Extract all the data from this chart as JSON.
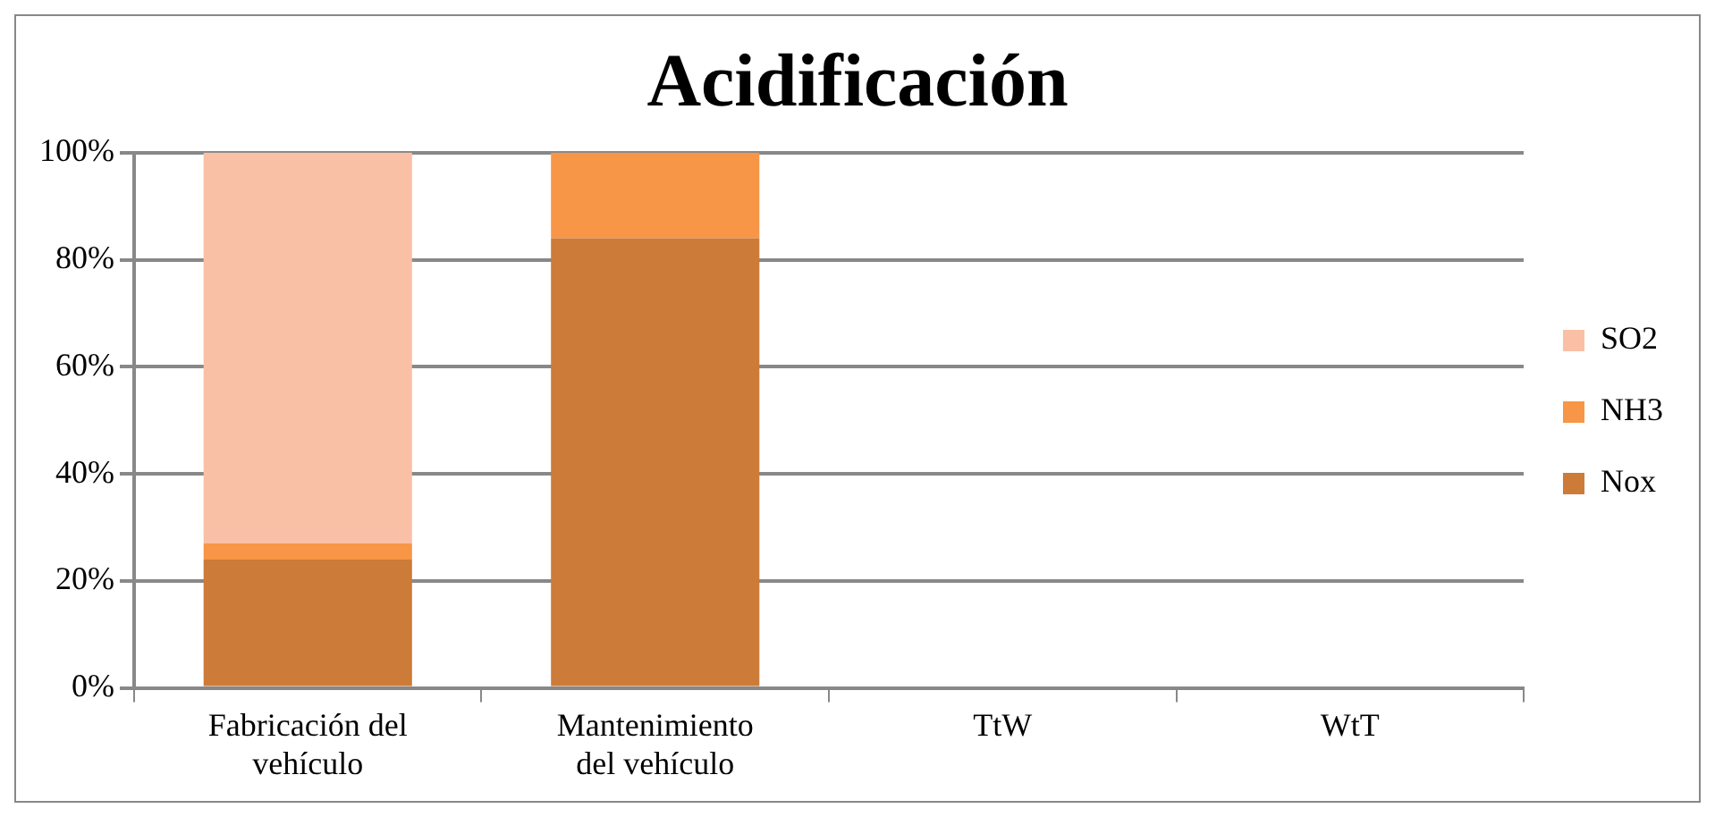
{
  "chart_data": {
    "type": "bar",
    "title": "Acidificación",
    "stacked": true,
    "categories": [
      "Fabricación del vehículo",
      "Mantenimiento del vehículo",
      "TtW",
      "WtT"
    ],
    "series": [
      {
        "name": "Nox",
        "color": "#cc7b38",
        "values": [
          24,
          84,
          null,
          null
        ]
      },
      {
        "name": "NH3",
        "color": "#f79646",
        "values": [
          3,
          16,
          null,
          null
        ]
      },
      {
        "name": "SO2",
        "color": "#fac0a5",
        "values": [
          73,
          null,
          null,
          null
        ]
      }
    ],
    "ylim": [
      0,
      100
    ],
    "yticks": [
      {
        "value": 0,
        "label": "0%"
      },
      {
        "value": 20,
        "label": "20%"
      },
      {
        "value": 40,
        "label": "40%"
      },
      {
        "value": 60,
        "label": "60%"
      },
      {
        "value": 80,
        "label": "80%"
      },
      {
        "value": 100,
        "label": "100%"
      }
    ],
    "grid": "y",
    "legend": "right"
  }
}
